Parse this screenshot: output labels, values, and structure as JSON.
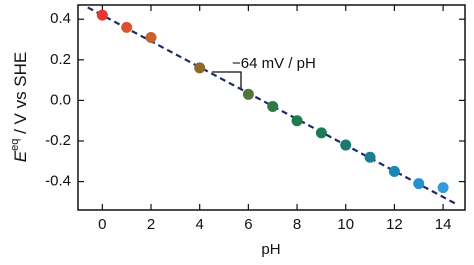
{
  "chart_data": {
    "type": "scatter",
    "xlabel": "pH",
    "ylabel": {
      "symbol": "E",
      "superscript": "eq",
      "text": " / V vs SHE"
    },
    "annotation": "−64 mV / pH",
    "x": [
      0,
      1,
      2,
      4,
      6,
      7,
      8,
      9,
      10,
      11,
      12,
      13,
      14
    ],
    "values": [
      0.42,
      0.36,
      0.31,
      0.16,
      0.03,
      -0.03,
      -0.1,
      -0.16,
      -0.22,
      -0.28,
      -0.35,
      -0.41,
      -0.43
    ],
    "colors": [
      "#e8352f",
      "#d9532f",
      "#c8622e",
      "#8e6a2a",
      "#56733a",
      "#2f7a45",
      "#1f7c4a",
      "#1c7c5a",
      "#1a7a6e",
      "#1b7d94",
      "#1d86b6",
      "#2790cf",
      "#3399dd"
    ],
    "fit": {
      "x": [
        -0.6,
        14.5
      ],
      "values": [
        0.458,
        -0.508
      ],
      "color": "#1c2a6b"
    },
    "xlim": [
      -1,
      14.9
    ],
    "ylim": [
      -0.54,
      0.47
    ],
    "xticks": [
      0,
      2,
      4,
      6,
      8,
      10,
      12,
      14
    ],
    "yticks": [
      0.4,
      0.2,
      {
        "value": 0,
        "label": "0.0"
      },
      -0.2,
      -0.4
    ]
  }
}
